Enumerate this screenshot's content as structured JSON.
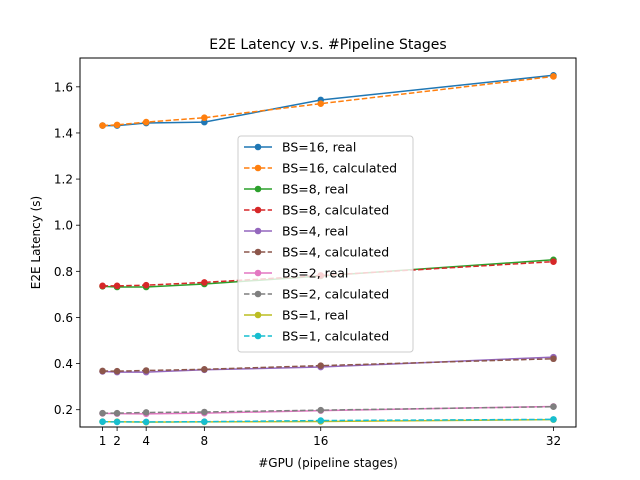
{
  "chart_data": {
    "type": "line",
    "title": "E2E Latency v.s. #Pipeline Stages",
    "xlabel": "#GPU (pipeline stages)",
    "ylabel": "E2E Latency (s)",
    "xlim": [
      -0.55,
      33.55
    ],
    "ylim": [
      0.125,
      1.725
    ],
    "xticks": [
      1,
      2,
      4,
      8,
      16,
      32
    ],
    "yticks": [
      0.2,
      0.4,
      0.6,
      0.8,
      1.0,
      1.2,
      1.4,
      1.6
    ],
    "ytick_labels": [
      "0.2",
      "0.4",
      "0.6",
      "0.8",
      "1.0",
      "1.2",
      "1.4",
      "1.6"
    ],
    "grid": false,
    "legend_position": "center",
    "x": [
      1,
      2,
      4,
      8,
      16,
      32
    ],
    "series": [
      {
        "name": "BS=16, real",
        "style": "solid",
        "color": "#1f77b4",
        "values": [
          1.432,
          1.432,
          1.443,
          1.447,
          1.543,
          1.65
        ]
      },
      {
        "name": "BS=16, calculated",
        "style": "dashed",
        "color": "#ff7f0e",
        "values": [
          1.432,
          1.435,
          1.447,
          1.466,
          1.527,
          1.645
        ]
      },
      {
        "name": "BS=8, real",
        "style": "solid",
        "color": "#2ca02c",
        "values": [
          0.735,
          0.732,
          0.732,
          0.745,
          0.78,
          0.85
        ]
      },
      {
        "name": "BS=8, calculated",
        "style": "dashed",
        "color": "#d62728",
        "values": [
          0.737,
          0.737,
          0.74,
          0.752,
          0.782,
          0.842
        ]
      },
      {
        "name": "BS=4, real",
        "style": "solid",
        "color": "#9467bd",
        "values": [
          0.366,
          0.363,
          0.363,
          0.373,
          0.385,
          0.428
        ]
      },
      {
        "name": "BS=4, calculated",
        "style": "dashed",
        "color": "#8c564b",
        "values": [
          0.368,
          0.367,
          0.37,
          0.375,
          0.391,
          0.421
        ]
      },
      {
        "name": "BS=2, real",
        "style": "solid",
        "color": "#e377c2",
        "values": [
          0.184,
          0.183,
          0.182,
          0.185,
          0.196,
          0.214
        ]
      },
      {
        "name": "BS=2, calculated",
        "style": "dashed",
        "color": "#7f7f7f",
        "values": [
          0.185,
          0.185,
          0.188,
          0.19,
          0.198,
          0.213
        ]
      },
      {
        "name": "BS=1, real",
        "style": "solid",
        "color": "#bcbd22",
        "values": [
          0.148,
          0.148,
          0.146,
          0.147,
          0.149,
          0.157
        ]
      },
      {
        "name": "BS=1, calculated",
        "style": "dashed",
        "color": "#17becf",
        "values": [
          0.148,
          0.147,
          0.147,
          0.148,
          0.153,
          0.158
        ]
      }
    ]
  }
}
